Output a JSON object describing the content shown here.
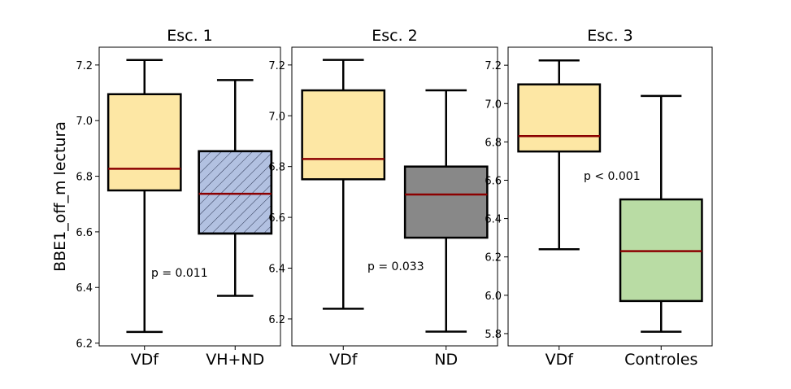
{
  "chart_data": [
    {
      "type": "box",
      "title": "Esc. 1",
      "ylabel": "BBE1_off_m lectura",
      "ylim": [
        6.19,
        7.264
      ],
      "yticks": [
        6.2,
        6.4,
        6.6,
        6.8,
        7.0,
        7.2
      ],
      "annotation": "p = 0.011",
      "boxes": [
        {
          "name": "VDf",
          "whisker_low": 6.24,
          "q1": 6.749,
          "median": 6.827,
          "q3": 7.095,
          "whisker_high": 7.218,
          "color": "#fde7a4",
          "hatch": false
        },
        {
          "name": "VH+ND",
          "whisker_low": 6.37,
          "q1": 6.594,
          "median": 6.737,
          "q3": 6.89,
          "whisker_high": 7.146,
          "color": "#b2c1e1",
          "hatch": true
        }
      ]
    },
    {
      "type": "box",
      "title": "Esc. 2",
      "ylabel": "",
      "ylim": [
        6.094,
        7.27
      ],
      "yticks": [
        6.2,
        6.4,
        6.6,
        6.8,
        7.0,
        7.2
      ],
      "annotation": "p = 0.033",
      "boxes": [
        {
          "name": "VDf",
          "whisker_low": 6.24,
          "q1": 6.75,
          "median": 6.83,
          "q3": 7.1,
          "whisker_high": 7.22,
          "color": "#fde7a4",
          "hatch": false
        },
        {
          "name": "ND",
          "whisker_low": 6.15,
          "q1": 6.52,
          "median": 6.69,
          "q3": 6.8,
          "whisker_high": 7.1,
          "color": "#888888",
          "hatch": false
        }
      ]
    },
    {
      "type": "box",
      "title": "Esc. 3",
      "ylabel": "",
      "ylim": [
        5.736,
        7.294
      ],
      "yticks": [
        5.8,
        6.0,
        6.2,
        6.4,
        6.6,
        6.8,
        7.0,
        7.2
      ],
      "annotation": "p < 0.001",
      "boxes": [
        {
          "name": "VDf",
          "whisker_low": 6.24,
          "q1": 6.75,
          "median": 6.83,
          "q3": 7.1,
          "whisker_high": 7.225,
          "color": "#fde7a4",
          "hatch": false
        },
        {
          "name": "Controles",
          "whisker_low": 5.81,
          "q1": 5.97,
          "median": 6.23,
          "q3": 6.5,
          "whisker_high": 7.04,
          "color": "#b9dca4",
          "hatch": false
        }
      ]
    }
  ],
  "median_color": "#8b0000"
}
